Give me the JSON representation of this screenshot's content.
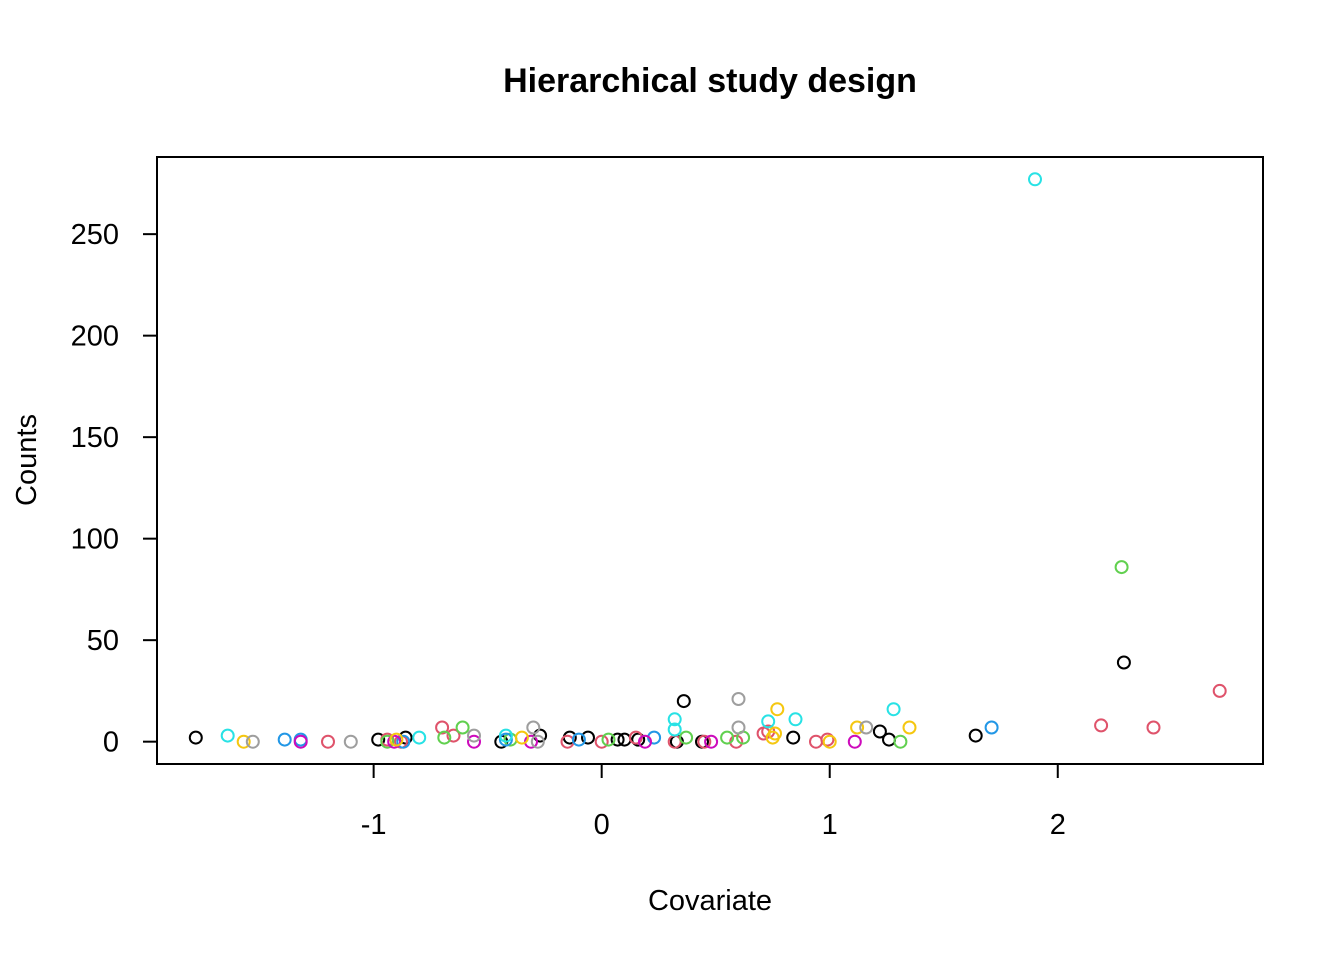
{
  "chart_data": {
    "type": "scatter",
    "title": "Hierarchical study design",
    "xlabel": "Covariate",
    "ylabel": "Counts",
    "xlim": [
      -1.95,
      2.9
    ],
    "ylim": [
      -11,
      288
    ],
    "xticks": [
      -1,
      0,
      1,
      2
    ],
    "xtick_labels": [
      "-1",
      "0",
      "1",
      "2"
    ],
    "yticks": [
      0,
      50,
      100,
      150,
      200,
      250
    ],
    "ytick_labels": [
      "0",
      "50",
      "100",
      "150",
      "200",
      "250"
    ],
    "grid": false,
    "legend": "none",
    "marker": "open-circle",
    "colors": [
      "#000000",
      "#DF536B",
      "#61D04F",
      "#2297E6",
      "#28E2E5",
      "#CD0BBC",
      "#F5C710",
      "#9E9E9E"
    ],
    "series": [
      {
        "color": "#000000",
        "points": [
          [
            -1.78,
            2
          ],
          [
            -0.98,
            1
          ],
          [
            -0.86,
            2
          ],
          [
            -0.44,
            0
          ],
          [
            -0.27,
            3
          ],
          [
            -0.14,
            2
          ],
          [
            -0.06,
            2
          ],
          [
            0.07,
            1
          ],
          [
            0.1,
            1
          ],
          [
            0.16,
            1
          ],
          [
            0.36,
            20
          ],
          [
            0.44,
            0
          ],
          [
            0.33,
            0
          ],
          [
            0.84,
            2
          ],
          [
            1.22,
            5
          ],
          [
            1.26,
            1
          ],
          [
            1.64,
            3
          ],
          [
            2.29,
            39
          ]
        ]
      },
      {
        "color": "#DF536B",
        "points": [
          [
            -1.2,
            0
          ],
          [
            -0.94,
            1
          ],
          [
            -0.88,
            0
          ],
          [
            -0.7,
            7
          ],
          [
            -0.65,
            3
          ],
          [
            -0.15,
            0
          ],
          [
            0,
            0
          ],
          [
            0.15,
            2
          ],
          [
            0.32,
            0
          ],
          [
            0.45,
            0
          ],
          [
            0.59,
            0
          ],
          [
            0.71,
            4
          ],
          [
            0.73,
            5
          ],
          [
            0.94,
            0
          ],
          [
            0.99,
            1
          ],
          [
            2.19,
            8
          ],
          [
            2.42,
            7
          ],
          [
            2.71,
            25
          ]
        ]
      },
      {
        "color": "#61D04F",
        "points": [
          [
            -0.94,
            0
          ],
          [
            -0.69,
            2
          ],
          [
            -0.61,
            7
          ],
          [
            -0.4,
            1
          ],
          [
            0.03,
            1
          ],
          [
            0.37,
            2
          ],
          [
            0.55,
            2
          ],
          [
            0.62,
            2
          ],
          [
            2.28,
            86
          ],
          [
            1.31,
            0
          ]
        ]
      },
      {
        "color": "#2297E6",
        "points": [
          [
            -1.39,
            1
          ],
          [
            -1.32,
            1
          ],
          [
            -0.42,
            1
          ],
          [
            -0.1,
            1
          ],
          [
            0.23,
            2
          ],
          [
            -0.87,
            0
          ],
          [
            1.71,
            7
          ]
        ]
      },
      {
        "color": "#28E2E5",
        "points": [
          [
            -1.64,
            3
          ],
          [
            -0.8,
            2
          ],
          [
            -0.42,
            3
          ],
          [
            0.32,
            11
          ],
          [
            0.32,
            6
          ],
          [
            0.73,
            10
          ],
          [
            0.85,
            11
          ],
          [
            1.28,
            16
          ],
          [
            1.9,
            277
          ]
        ]
      },
      {
        "color": "#CD0BBC",
        "points": [
          [
            -1.32,
            0
          ],
          [
            -0.56,
            0
          ],
          [
            -0.31,
            0
          ],
          [
            0.19,
            0
          ],
          [
            0.48,
            0
          ],
          [
            1.11,
            0
          ],
          [
            -0.91,
            0
          ]
        ]
      },
      {
        "color": "#F5C710",
        "points": [
          [
            -1.57,
            0
          ],
          [
            -0.9,
            1
          ],
          [
            -0.35,
            2
          ],
          [
            0.75,
            2
          ],
          [
            0.77,
            16
          ],
          [
            1.0,
            0
          ],
          [
            1.12,
            7
          ],
          [
            1.35,
            7
          ],
          [
            0.76,
            4
          ]
        ]
      },
      {
        "color": "#9E9E9E",
        "points": [
          [
            -1.53,
            0
          ],
          [
            -1.1,
            0
          ],
          [
            -0.56,
            3
          ],
          [
            -0.3,
            7
          ],
          [
            -0.28,
            0
          ],
          [
            0.6,
            21
          ],
          [
            0.6,
            7
          ],
          [
            1.16,
            7
          ]
        ]
      }
    ]
  }
}
